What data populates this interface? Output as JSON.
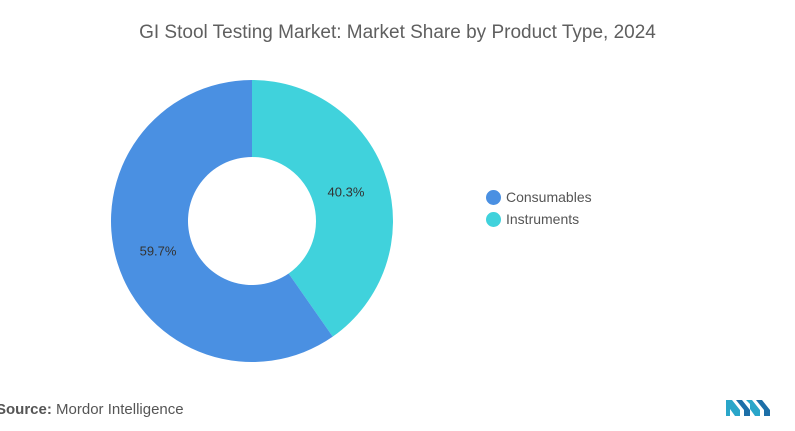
{
  "title": "GI Stool Testing Market: Market Share by Product Type, 2024",
  "chart_data": {
    "type": "pie",
    "title": "GI Stool Testing Market: Market Share by Product Type, 2024",
    "donut": true,
    "categories": [
      "Consumables",
      "Instruments"
    ],
    "values": [
      59.7,
      40.3
    ],
    "labels": [
      "59.7%",
      "40.3%"
    ],
    "colors": [
      "#4A90E2",
      "#40D2DC"
    ],
    "legend_position": "right"
  },
  "legend": {
    "items": [
      {
        "label": "Consumables",
        "color": "#4A90E2"
      },
      {
        "label": "Instruments",
        "color": "#40D2DC"
      }
    ]
  },
  "source": {
    "prefix": "Source:",
    "text": "Mordor Intelligence"
  },
  "logo": {
    "icon": "mordor-intelligence-logo"
  }
}
